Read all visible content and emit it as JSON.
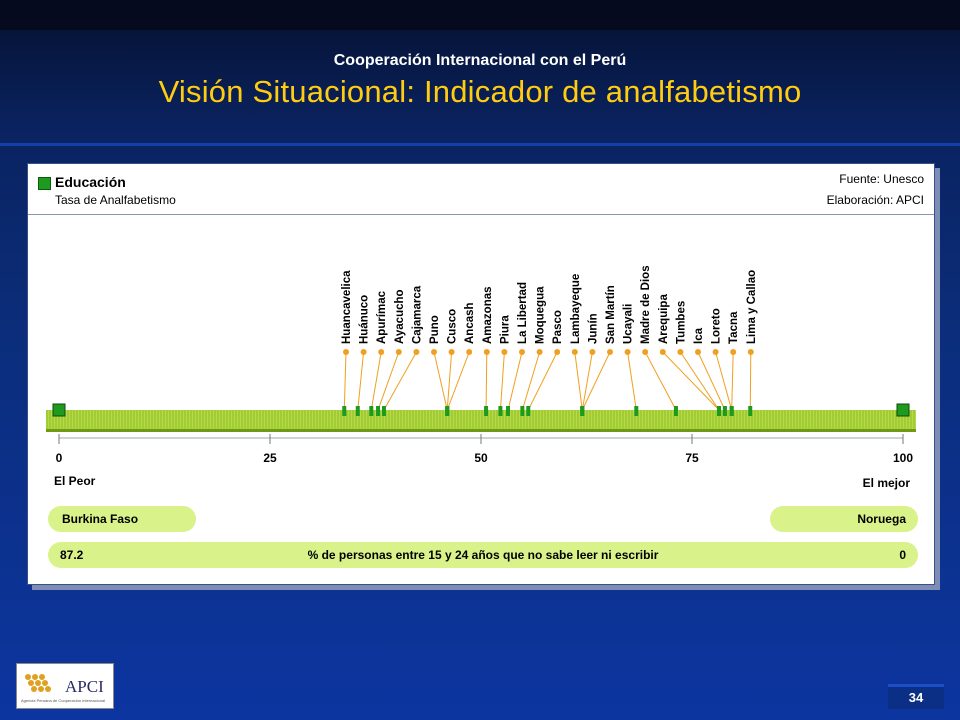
{
  "header": {
    "subtitle": "Cooperación Internacional con el Perú",
    "title": "Visión Situacional: Indicador de analfabetismo"
  },
  "panel": {
    "category_label": "Educación",
    "indicator_label": "Tasa de Analfabetismo",
    "source": "Fuente: Unesco",
    "elaboration": "Elaboración: APCI"
  },
  "chart_data": {
    "type": "scatter",
    "title": "",
    "xlabel": "",
    "ylabel": "",
    "xlim": [
      0,
      100
    ],
    "xticks": [
      0,
      25,
      50,
      75,
      100
    ],
    "xtick_labels": [
      "0",
      "25",
      "50",
      "75",
      "100"
    ],
    "left_end_label": "El Peor",
    "right_end_label": "El mejor",
    "endpoints": [
      {
        "name": "Burkina Faso",
        "x": 0
      },
      {
        "name": "Noruega",
        "x": 100
      }
    ],
    "points": [
      {
        "name": "Huancavelica",
        "x": 33.8
      },
      {
        "name": "Huánuco",
        "x": 35.4
      },
      {
        "name": "Apurímac",
        "x": 37.0
      },
      {
        "name": "Ayacucho",
        "x": 37.8
      },
      {
        "name": "Cajamarca",
        "x": 38.5
      },
      {
        "name": "Puno",
        "x": 46.0
      },
      {
        "name": "Cusco",
        "x": 46.0
      },
      {
        "name": "Ancash",
        "x": 46.0
      },
      {
        "name": "Amazonas",
        "x": 50.6
      },
      {
        "name": "Piura",
        "x": 52.3
      },
      {
        "name": "La Libertad",
        "x": 53.2
      },
      {
        "name": "Moquegua",
        "x": 54.9
      },
      {
        "name": "Pasco",
        "x": 55.6
      },
      {
        "name": "Lambayeque",
        "x": 62.0
      },
      {
        "name": "Junín",
        "x": 62.0
      },
      {
        "name": "San Martín",
        "x": 62.0
      },
      {
        "name": "Ucayali",
        "x": 68.4
      },
      {
        "name": "Madre de Dios",
        "x": 73.1
      },
      {
        "name": "Arequipa",
        "x": 78.2
      },
      {
        "name": "Tumbes",
        "x": 78.2
      },
      {
        "name": "Ica",
        "x": 78.9
      },
      {
        "name": "Loreto",
        "x": 79.7
      },
      {
        "name": "Tacna",
        "x": 79.7
      },
      {
        "name": "Lima y Callao",
        "x": 81.9
      }
    ],
    "grid": false,
    "legend": "none"
  },
  "footer": {
    "left_country": "Burkina Faso",
    "right_country": "Noruega",
    "left_value": "87.2",
    "description": "% de personas entre 15 y 24 años que no sabe leer ni escribir",
    "right_value": "0",
    "page_number": "34",
    "logo_text": "APCI",
    "logo_tagline": "Agencia Peruana de Cooperación Internacional"
  },
  "colors": {
    "title_yellow": "#ffcc11",
    "bar_green": "#b6d94a",
    "marker_green": "#1e9a1e",
    "callout_orange": "#f0a020",
    "pill_fill": "#d9f28a"
  }
}
